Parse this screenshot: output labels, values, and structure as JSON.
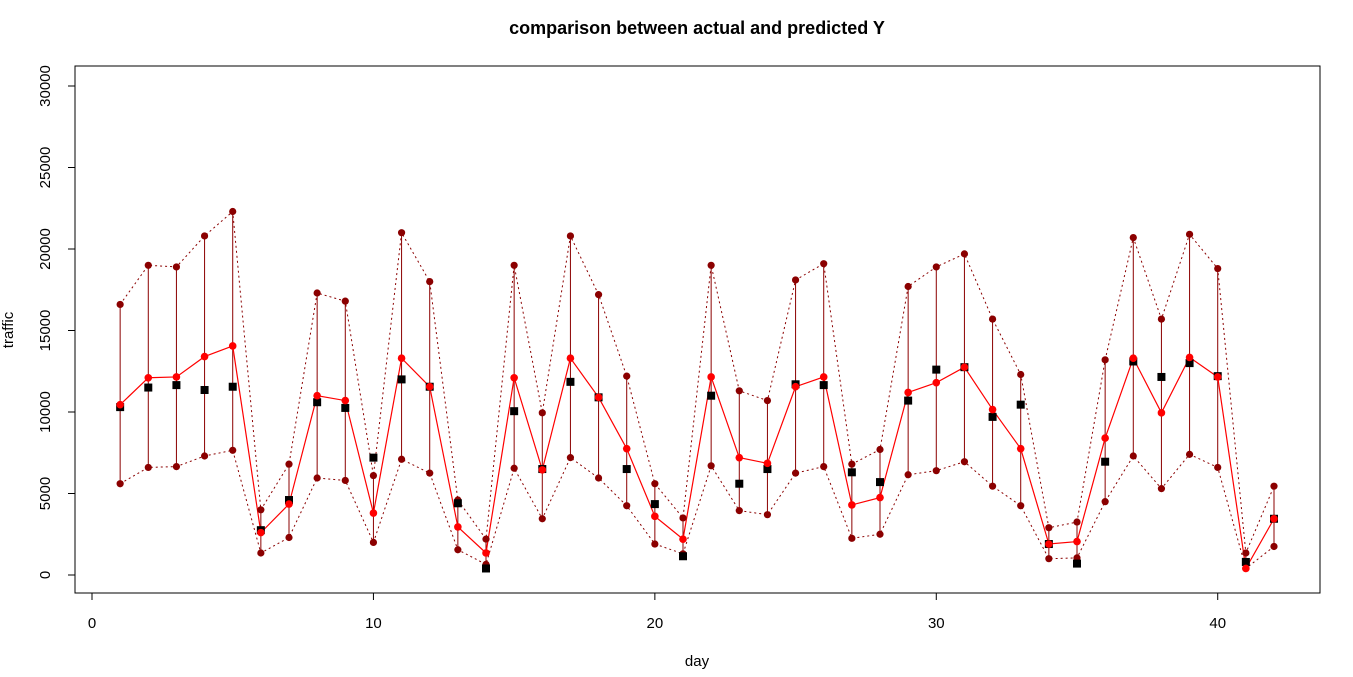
{
  "chart_data": {
    "type": "line",
    "title": "comparison between actual and predicted Y",
    "xlabel": "day",
    "ylabel": "traffic",
    "xlim": [
      0,
      43
    ],
    "ylim": [
      0,
      30000
    ],
    "x_ticks": [
      0,
      10,
      20,
      30,
      40
    ],
    "y_ticks": [
      0,
      5000,
      10000,
      15000,
      20000,
      25000,
      30000
    ],
    "grid": false,
    "colors": {
      "predicted": "#ff0000",
      "bounds": "#8b0000",
      "actual": "#000000"
    },
    "x": [
      1,
      2,
      3,
      4,
      5,
      6,
      7,
      8,
      9,
      10,
      11,
      12,
      13,
      14,
      15,
      16,
      17,
      18,
      19,
      20,
      21,
      22,
      23,
      24,
      25,
      26,
      27,
      28,
      29,
      30,
      31,
      32,
      33,
      34,
      35,
      36,
      37,
      38,
      39,
      40,
      41,
      42
    ],
    "series": [
      {
        "values": [
          10450,
          12100,
          12150,
          13400,
          14050,
          2600,
          4350,
          11000,
          10700,
          3800,
          13300,
          11550,
          2950,
          1350,
          12100,
          6450,
          13300,
          10900,
          7750,
          3600,
          2200,
          12150,
          7200,
          6850,
          11550,
          12150,
          4300,
          4750,
          11200,
          11800,
          12750,
          10150,
          7750,
          1900,
          2050,
          8400,
          13300,
          9950,
          13350,
          12150,
          400,
          3450
        ]
      },
      {
        "values": [
          16600,
          19000,
          18900,
          20800,
          22300,
          4000,
          6800,
          17300,
          16800,
          6100,
          21000,
          18000,
          4600,
          2200,
          19000,
          9950,
          20800,
          17200,
          12200,
          5600,
          3500,
          19000,
          11300,
          10700,
          18100,
          19100,
          6800,
          7700,
          17700,
          18900,
          19700,
          15700,
          12300,
          2900,
          3250,
          13200,
          20700,
          15700,
          20900,
          18800,
          1350,
          5450
        ]
      },
      {
        "values": [
          5600,
          6600,
          6650,
          7300,
          7650,
          1350,
          2300,
          5950,
          5800,
          2000,
          7100,
          6250,
          1550,
          650,
          6550,
          3450,
          7200,
          5950,
          4250,
          1900,
          1300,
          6700,
          3950,
          3700,
          6250,
          6650,
          2250,
          2500,
          6150,
          6400,
          6950,
          5450,
          4250,
          1000,
          1050,
          4500,
          7300,
          5300,
          7400,
          6600,
          400,
          1750
        ]
      },
      {
        "values": [
          10300,
          11500,
          11650,
          11350,
          11550,
          2750,
          4600,
          10600,
          10250,
          7200,
          12000,
          11550,
          4400,
          400,
          10050,
          6500,
          11850,
          10900,
          6500,
          4350,
          1150,
          11000,
          5600,
          6500,
          11700,
          11650,
          6300,
          5700,
          10700,
          12600,
          12750,
          9700,
          10450,
          1900,
          700,
          6950,
          13100,
          12150,
          13000,
          12200,
          800,
          3450
        ]
      }
    ]
  }
}
